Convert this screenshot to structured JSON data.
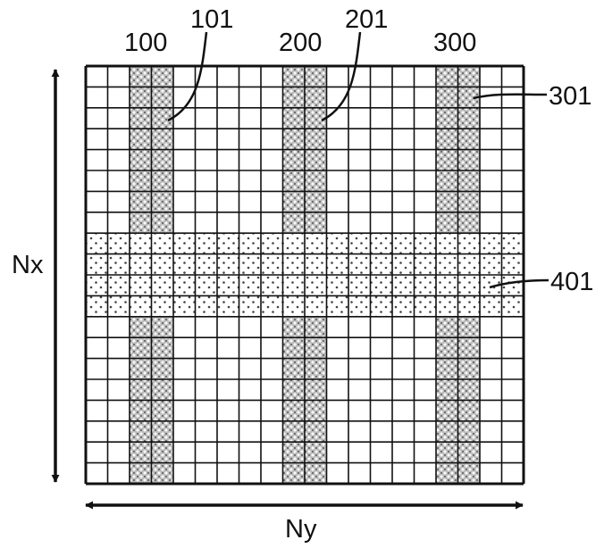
{
  "figure": {
    "grid": {
      "rows": 20,
      "cols": 20,
      "column_blocks": [
        {
          "label": "100",
          "cols": [
            2,
            3
          ]
        },
        {
          "label": "200",
          "cols": [
            9,
            10
          ]
        },
        {
          "label": "300",
          "cols": [
            16,
            17
          ]
        }
      ],
      "row_block": {
        "label": "401",
        "rows": [
          8,
          9,
          10,
          11
        ]
      }
    },
    "labels": {
      "col_block_1": "100",
      "col_element_1": "101",
      "col_block_2": "200",
      "col_element_2": "201",
      "col_block_3": "300",
      "col_element_3": "301",
      "row_element": "401",
      "vertical_dimension": "Nx",
      "horizontal_dimension": "Ny"
    },
    "colors": {
      "line": "#111111",
      "background": "#ffffff",
      "dense_pattern": "#3a3a3a",
      "light_pattern": "#555555"
    }
  }
}
